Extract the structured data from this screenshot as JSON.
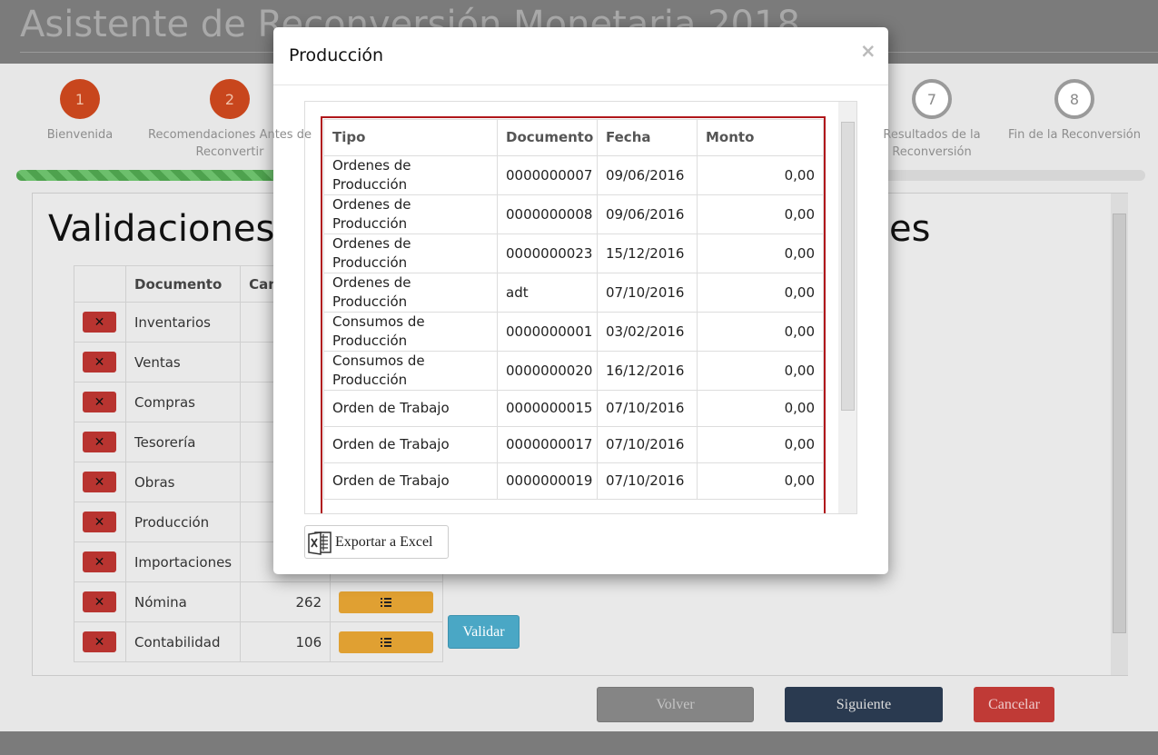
{
  "header": {
    "title": "Asistente de Reconversión Monetaria 2018"
  },
  "steps": [
    {
      "number": "1",
      "label": "Bienvenida",
      "state": "done"
    },
    {
      "number": "2",
      "label": "Recomendaciones Antes de Reconvertir",
      "state": "done"
    },
    {
      "number": "7",
      "label": "Resultados de la Reconversión",
      "state": "pending"
    },
    {
      "number": "8",
      "label": "Fin de la Reconversión",
      "state": "pending"
    }
  ],
  "panel": {
    "title_start": "Validaciones",
    "title_end": "es",
    "table": {
      "headers": [
        "Documento",
        "Cantidad"
      ],
      "rows": [
        {
          "documento": "Inventarios"
        },
        {
          "documento": "Ventas"
        },
        {
          "documento": "Compras"
        },
        {
          "documento": "Tesorería"
        },
        {
          "documento": "Obras"
        },
        {
          "documento": "Producción"
        },
        {
          "documento": "Importaciones"
        },
        {
          "documento": "Nómina",
          "cantidad": "262"
        },
        {
          "documento": "Contabilidad",
          "cantidad": "106"
        }
      ]
    },
    "validate_button": "Validar"
  },
  "footer": {
    "back": "Volver",
    "next": "Siguiente",
    "cancel": "Cancelar"
  },
  "modal": {
    "title": "Producción",
    "close": "×",
    "table": {
      "headers": [
        "Tipo",
        "Documento",
        "Fecha",
        "Monto"
      ],
      "rows": [
        [
          "Ordenes de Producción",
          "0000000007",
          "09/06/2016",
          "0,00"
        ],
        [
          "Ordenes de Producción",
          "0000000008",
          "09/06/2016",
          "0,00"
        ],
        [
          "Ordenes de Producción",
          "0000000023",
          "15/12/2016",
          "0,00"
        ],
        [
          "Ordenes de Producción",
          "adt",
          "07/10/2016",
          "0,00"
        ],
        [
          "Consumos de Producción",
          "0000000001",
          "03/02/2016",
          "0,00"
        ],
        [
          "Consumos de Producción",
          "0000000020",
          "16/12/2016",
          "0,00"
        ],
        [
          "Orden de Trabajo",
          "0000000015",
          "07/10/2016",
          "0,00"
        ],
        [
          "Orden de Trabajo",
          "0000000017",
          "07/10/2016",
          "0,00"
        ],
        [
          "Orden de Trabajo",
          "0000000019",
          "07/10/2016",
          "0,00"
        ]
      ]
    },
    "export_button": "Exportar a Excel"
  }
}
